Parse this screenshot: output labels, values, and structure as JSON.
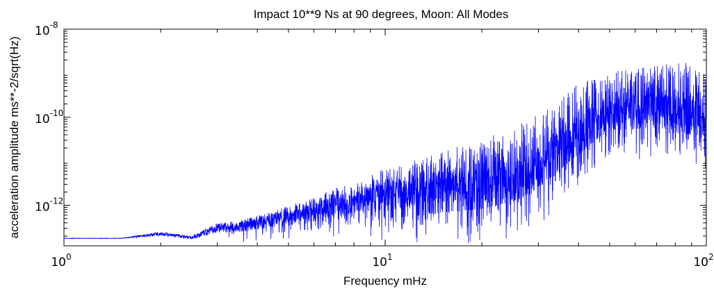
{
  "chart_data": {
    "type": "line",
    "title": "Impact 10**9 Ns at 90 degrees, Moon: All Modes",
    "xlabel": "Frequency mHz",
    "ylabel": "acceleration amplitude ms**-2/sqrt(Hz)",
    "xscale": "log",
    "yscale": "log",
    "xlim": [
      1,
      100
    ],
    "ylim": [
      1.2e-13,
      1e-08
    ],
    "grid": false,
    "x_ticks": [
      {
        "base": "10",
        "exp": "0",
        "value": 1
      },
      {
        "base": "10",
        "exp": "1",
        "value": 10
      },
      {
        "base": "10",
        "exp": "2",
        "value": 100
      }
    ],
    "y_ticks": [
      {
        "base": "10",
        "exp": "-12",
        "value": 1e-12
      },
      {
        "base": "10",
        "exp": "-10",
        "value": 1e-10
      },
      {
        "base": "10",
        "exp": "-8",
        "value": 1e-08
      }
    ],
    "series": [
      {
        "color": "#0000ff",
        "x": [
          1,
          1.5,
          2,
          2.5,
          3,
          3.5,
          4,
          5,
          6,
          7,
          8,
          10,
          12,
          15,
          20,
          25,
          30,
          40,
          50,
          60,
          70,
          80,
          90,
          95,
          100
        ],
        "y_upper": [
          1.8e-13,
          1.8e-13,
          2.5e-13,
          2e-13,
          4e-13,
          4.5e-13,
          6e-13,
          1e-12,
          1.5e-12,
          2.5e-12,
          3e-12,
          7e-12,
          1e-11,
          1.8e-11,
          3e-11,
          6e-11,
          1.2e-10,
          6e-10,
          1.1e-09,
          1.3e-09,
          1.5e-09,
          1.7e-09,
          1.8e-09,
          2e-09,
          1.5e-09
        ],
        "y_lower": [
          1.7e-13,
          1.7e-13,
          1.6e-13,
          1.4e-13,
          1.2e-13,
          1.2e-13,
          1.2e-13,
          1.2e-13,
          1.2e-13,
          1.2e-13,
          1.2e-13,
          1.2e-13,
          1.2e-13,
          1.2e-13,
          1.2e-13,
          1.5e-13,
          3e-13,
          2e-12,
          1e-11,
          1e-11,
          1e-11,
          8e-12,
          5e-12,
          1e-11,
          3e-12
        ]
      }
    ]
  }
}
